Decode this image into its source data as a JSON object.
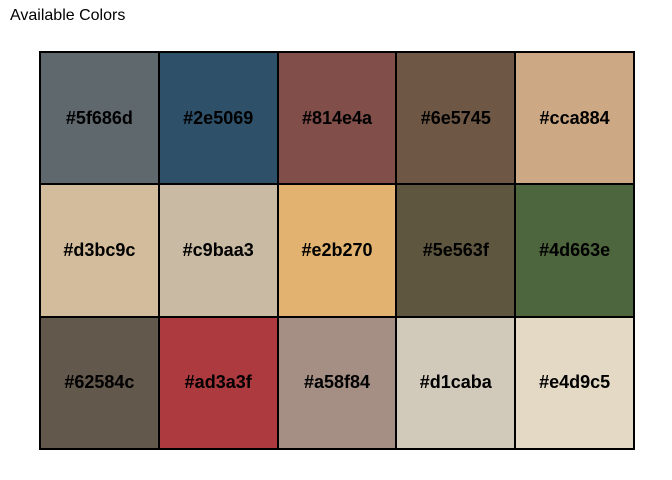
{
  "title": "Available Colors",
  "swatches": [
    {
      "label": "#5f686d",
      "color": "#5f686d"
    },
    {
      "label": "#2e5069",
      "color": "#2e5069"
    },
    {
      "label": "#814e4a",
      "color": "#814e4a"
    },
    {
      "label": "#6e5745",
      "color": "#6e5745"
    },
    {
      "label": "#cca884",
      "color": "#cca884"
    },
    {
      "label": "#d3bc9c",
      "color": "#d3bc9c"
    },
    {
      "label": "#c9baa3",
      "color": "#c9baa3"
    },
    {
      "label": "#e2b270",
      "color": "#e2b270"
    },
    {
      "label": "#5e563f",
      "color": "#5e563f"
    },
    {
      "label": "#4d663e",
      "color": "#4d663e"
    },
    {
      "label": "#62584c",
      "color": "#62584c"
    },
    {
      "label": "#ad3a3f",
      "color": "#ad3a3f"
    },
    {
      "label": "#a58f84",
      "color": "#a58f84"
    },
    {
      "label": "#d1caba",
      "color": "#d1caba"
    },
    {
      "label": "#e4d9c5",
      "color": "#e4d9c5"
    }
  ]
}
